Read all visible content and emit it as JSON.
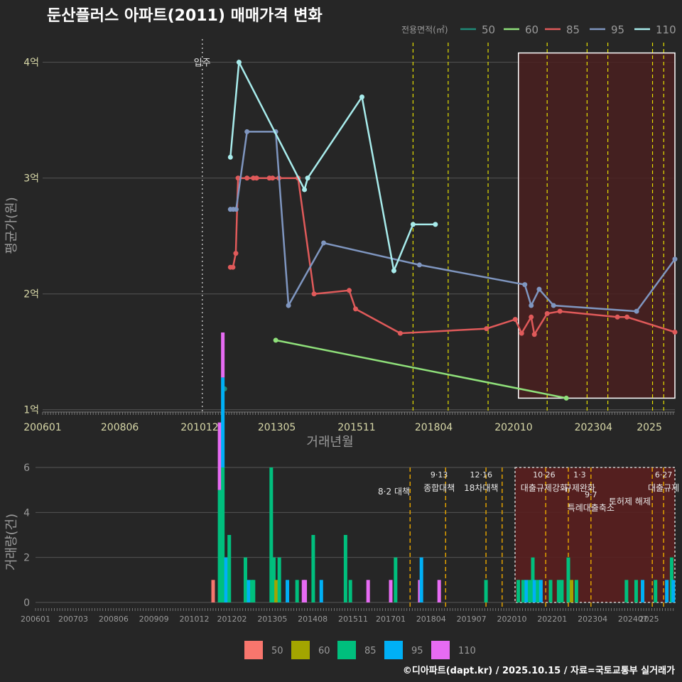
{
  "title": "둔산플러스 아파트(2011) 매매가격 변화",
  "credit": "©디아파트(dapt.kr) / 2025.10.15 / 자료=국토교통부 실거래가",
  "colors": {
    "background": "#262626",
    "s50": "#1f8a78",
    "s60": "#8fe07a",
    "s85": "#e05a5a",
    "s95": "#7f96c0",
    "s110": "#a8ecec",
    "b50": "#f8766d",
    "b60": "#a3a500",
    "b85": "#00bf7d",
    "b95": "#00b0f6",
    "b110": "#e76bf3",
    "event_line": "#e6e000",
    "event_line_lower": "#e0a000",
    "highlight_fill": "#4a2020",
    "highlight_border": "#ffffff"
  },
  "chart_data": [
    {
      "type": "line",
      "ylabel": "평균가(원)",
      "xlabel": "거래년월",
      "x_ticks": [
        "200601",
        "200806",
        "201012",
        "201305",
        "201511",
        "201804",
        "202010",
        "202304",
        "2025"
      ],
      "y_ticks": [
        "1억",
        "2억",
        "3억",
        "4억"
      ],
      "y_tick_values": [
        1,
        2,
        3,
        4
      ],
      "ylim": [
        0.98,
        4.2
      ],
      "xlim": [
        2006.0,
        2025.8
      ],
      "legend_title": "전용면적(㎡)",
      "movein_label": "입주",
      "movein_x": 2011.0,
      "event_lines_x": [
        2017.6,
        2018.7,
        2019.95,
        2021.8,
        2023.05,
        2023.7,
        2025.1,
        2025.45
      ],
      "highlight_range": [
        2020.9,
        2025.8
      ],
      "highlight_y": [
        1.1,
        4.08
      ],
      "series": [
        {
          "name": "50",
          "points": [
            [
              2011.7,
              1.18
            ]
          ]
        },
        {
          "name": "60",
          "points": [
            [
              2013.3,
              1.6
            ],
            [
              2022.4,
              1.1
            ]
          ]
        },
        {
          "name": "85",
          "points": [
            [
              2011.88,
              2.23
            ],
            [
              2011.96,
              2.23
            ],
            [
              2012.05,
              2.35
            ],
            [
              2012.12,
              3.0
            ],
            [
              2012.4,
              3.0
            ],
            [
              2012.6,
              3.0
            ],
            [
              2012.7,
              3.0
            ],
            [
              2013.1,
              3.0
            ],
            [
              2013.2,
              3.0
            ],
            [
              2013.4,
              3.0
            ],
            [
              2014.0,
              3.0
            ],
            [
              2014.5,
              2.0
            ],
            [
              2015.6,
              2.03
            ],
            [
              2015.8,
              1.87
            ],
            [
              2017.2,
              1.66
            ],
            [
              2019.9,
              1.7
            ],
            [
              2020.8,
              1.78
            ],
            [
              2021.0,
              1.66
            ],
            [
              2021.3,
              1.8
            ],
            [
              2021.4,
              1.65
            ],
            [
              2021.8,
              1.83
            ],
            [
              2022.2,
              1.85
            ],
            [
              2024.0,
              1.8
            ],
            [
              2024.3,
              1.8
            ],
            [
              2025.8,
              1.67
            ]
          ]
        },
        {
          "name": "95",
          "points": [
            [
              2011.88,
              2.73
            ],
            [
              2011.97,
              2.73
            ],
            [
              2012.06,
              2.73
            ],
            [
              2012.4,
              3.4
            ],
            [
              2013.3,
              3.4
            ],
            [
              2013.7,
              1.9
            ],
            [
              2014.8,
              2.44
            ],
            [
              2017.8,
              2.25
            ],
            [
              2021.1,
              2.08
            ],
            [
              2021.3,
              1.9
            ],
            [
              2021.55,
              2.04
            ],
            [
              2022.0,
              1.9
            ],
            [
              2024.6,
              1.85
            ],
            [
              2025.8,
              2.3
            ]
          ]
        },
        {
          "name": "110",
          "points": [
            [
              2011.88,
              3.18
            ],
            [
              2012.15,
              4.0
            ],
            [
              2014.2,
              2.9
            ],
            [
              2014.3,
              3.0
            ],
            [
              2016.0,
              3.7
            ],
            [
              2017.0,
              2.2
            ],
            [
              2017.6,
              2.6
            ],
            [
              2018.3,
              2.6
            ]
          ]
        }
      ]
    },
    {
      "type": "bar",
      "ylabel": "거래량(건)",
      "x_ticks": [
        "200601",
        "200703",
        "200806",
        "200909",
        "201012",
        "201202",
        "201305",
        "201408",
        "201511",
        "201701",
        "201804",
        "201907",
        "202010",
        "202201",
        "202304",
        "202407",
        "2025"
      ],
      "y_ticks": [
        "0",
        "2",
        "4",
        "6"
      ],
      "y_tick_values": [
        0,
        2,
        4,
        6
      ],
      "ylim": [
        0,
        6
      ],
      "xlim": [
        2006.0,
        2025.8
      ],
      "legend": [
        "50",
        "60",
        "85",
        "95",
        "110"
      ],
      "highlight_range": [
        2020.85,
        2025.8
      ],
      "event_lines_x": [
        2017.6,
        2018.7,
        2019.95,
        2020.45,
        2021.8,
        2022.5,
        2023.2,
        2025.1,
        2025.45
      ],
      "events": [
        {
          "date": "",
          "name": "8·2 대책",
          "x": 2017.1,
          "row": 1
        },
        {
          "date": "9·13",
          "name": "종합대책",
          "x": 2018.5,
          "row": 0
        },
        {
          "date": "12·16",
          "name": "18차대책",
          "x": 2019.8,
          "row": 0
        },
        {
          "date": "10·26",
          "name": "대출규제강화",
          "x": 2021.75,
          "row": 0
        },
        {
          "date": "1·3",
          "name": "규제완화",
          "x": 2022.85,
          "row": 0
        },
        {
          "date": "9·7",
          "name": "특례대출축소",
          "x": 2023.2,
          "row": 2
        },
        {
          "date": "",
          "name": "토허제 해제",
          "x": 2024.4,
          "row": 2
        },
        {
          "date": "6·27",
          "name": "대출규제",
          "x": 2025.45,
          "row": 0
        }
      ],
      "bars": [
        {
          "x": 2011.5,
          "s": "50",
          "v": 1
        },
        {
          "x": 2011.7,
          "s": "85",
          "v": 5
        },
        {
          "x": 2011.7,
          "s": "110",
          "v": 3
        },
        {
          "x": 2011.8,
          "s": "85",
          "v": 6
        },
        {
          "x": 2011.8,
          "s": "95",
          "v": 4
        },
        {
          "x": 2011.8,
          "s": "110",
          "v": 2
        },
        {
          "x": 2011.9,
          "s": "95",
          "v": 2
        },
        {
          "x": 2012.0,
          "s": "85",
          "v": 3
        },
        {
          "x": 2012.5,
          "s": "85",
          "v": 2
        },
        {
          "x": 2012.6,
          "s": "95",
          "v": 1
        },
        {
          "x": 2012.7,
          "s": "85",
          "v": 1
        },
        {
          "x": 2012.75,
          "s": "85",
          "v": 1
        },
        {
          "x": 2013.3,
          "s": "85",
          "v": 6
        },
        {
          "x": 2013.38,
          "s": "85",
          "v": 2
        },
        {
          "x": 2013.45,
          "s": "60",
          "v": 1
        },
        {
          "x": 2013.55,
          "s": "85",
          "v": 2
        },
        {
          "x": 2013.8,
          "s": "95",
          "v": 1
        },
        {
          "x": 2014.1,
          "s": "85",
          "v": 1
        },
        {
          "x": 2014.3,
          "s": "110",
          "v": 1
        },
        {
          "x": 2014.35,
          "s": "110",
          "v": 1
        },
        {
          "x": 2014.6,
          "s": "85",
          "v": 3
        },
        {
          "x": 2014.85,
          "s": "95",
          "v": 1
        },
        {
          "x": 2015.6,
          "s": "85",
          "v": 3
        },
        {
          "x": 2015.75,
          "s": "85",
          "v": 1
        },
        {
          "x": 2016.3,
          "s": "110",
          "v": 1
        },
        {
          "x": 2017.0,
          "s": "110",
          "v": 1
        },
        {
          "x": 2017.15,
          "s": "85",
          "v": 2
        },
        {
          "x": 2017.9,
          "s": "110",
          "v": 1
        },
        {
          "x": 2017.95,
          "s": "95",
          "v": 2
        },
        {
          "x": 2018.5,
          "s": "110",
          "v": 1
        },
        {
          "x": 2019.95,
          "s": "85",
          "v": 1
        },
        {
          "x": 2020.95,
          "s": "85",
          "v": 1
        },
        {
          "x": 2021.1,
          "s": "85",
          "v": 1
        },
        {
          "x": 2021.2,
          "s": "95",
          "v": 1
        },
        {
          "x": 2021.3,
          "s": "85",
          "v": 1
        },
        {
          "x": 2021.4,
          "s": "85",
          "v": 2
        },
        {
          "x": 2021.45,
          "s": "95",
          "v": 1
        },
        {
          "x": 2021.55,
          "s": "85",
          "v": 1
        },
        {
          "x": 2021.65,
          "s": "95",
          "v": 1
        },
        {
          "x": 2021.95,
          "s": "85",
          "v": 1
        },
        {
          "x": 2022.2,
          "s": "85",
          "v": 1
        },
        {
          "x": 2022.3,
          "s": "85",
          "v": 1
        },
        {
          "x": 2022.5,
          "s": "85",
          "v": 2
        },
        {
          "x": 2022.6,
          "s": "60",
          "v": 1
        },
        {
          "x": 2022.75,
          "s": "85",
          "v": 1
        },
        {
          "x": 2024.3,
          "s": "85",
          "v": 1
        },
        {
          "x": 2024.6,
          "s": "85",
          "v": 1
        },
        {
          "x": 2024.8,
          "s": "95",
          "v": 1
        },
        {
          "x": 2025.2,
          "s": "85",
          "v": 1
        },
        {
          "x": 2025.55,
          "s": "95",
          "v": 1
        },
        {
          "x": 2025.7,
          "s": "85",
          "v": 2
        },
        {
          "x": 2025.75,
          "s": "95",
          "v": 1
        }
      ]
    }
  ]
}
